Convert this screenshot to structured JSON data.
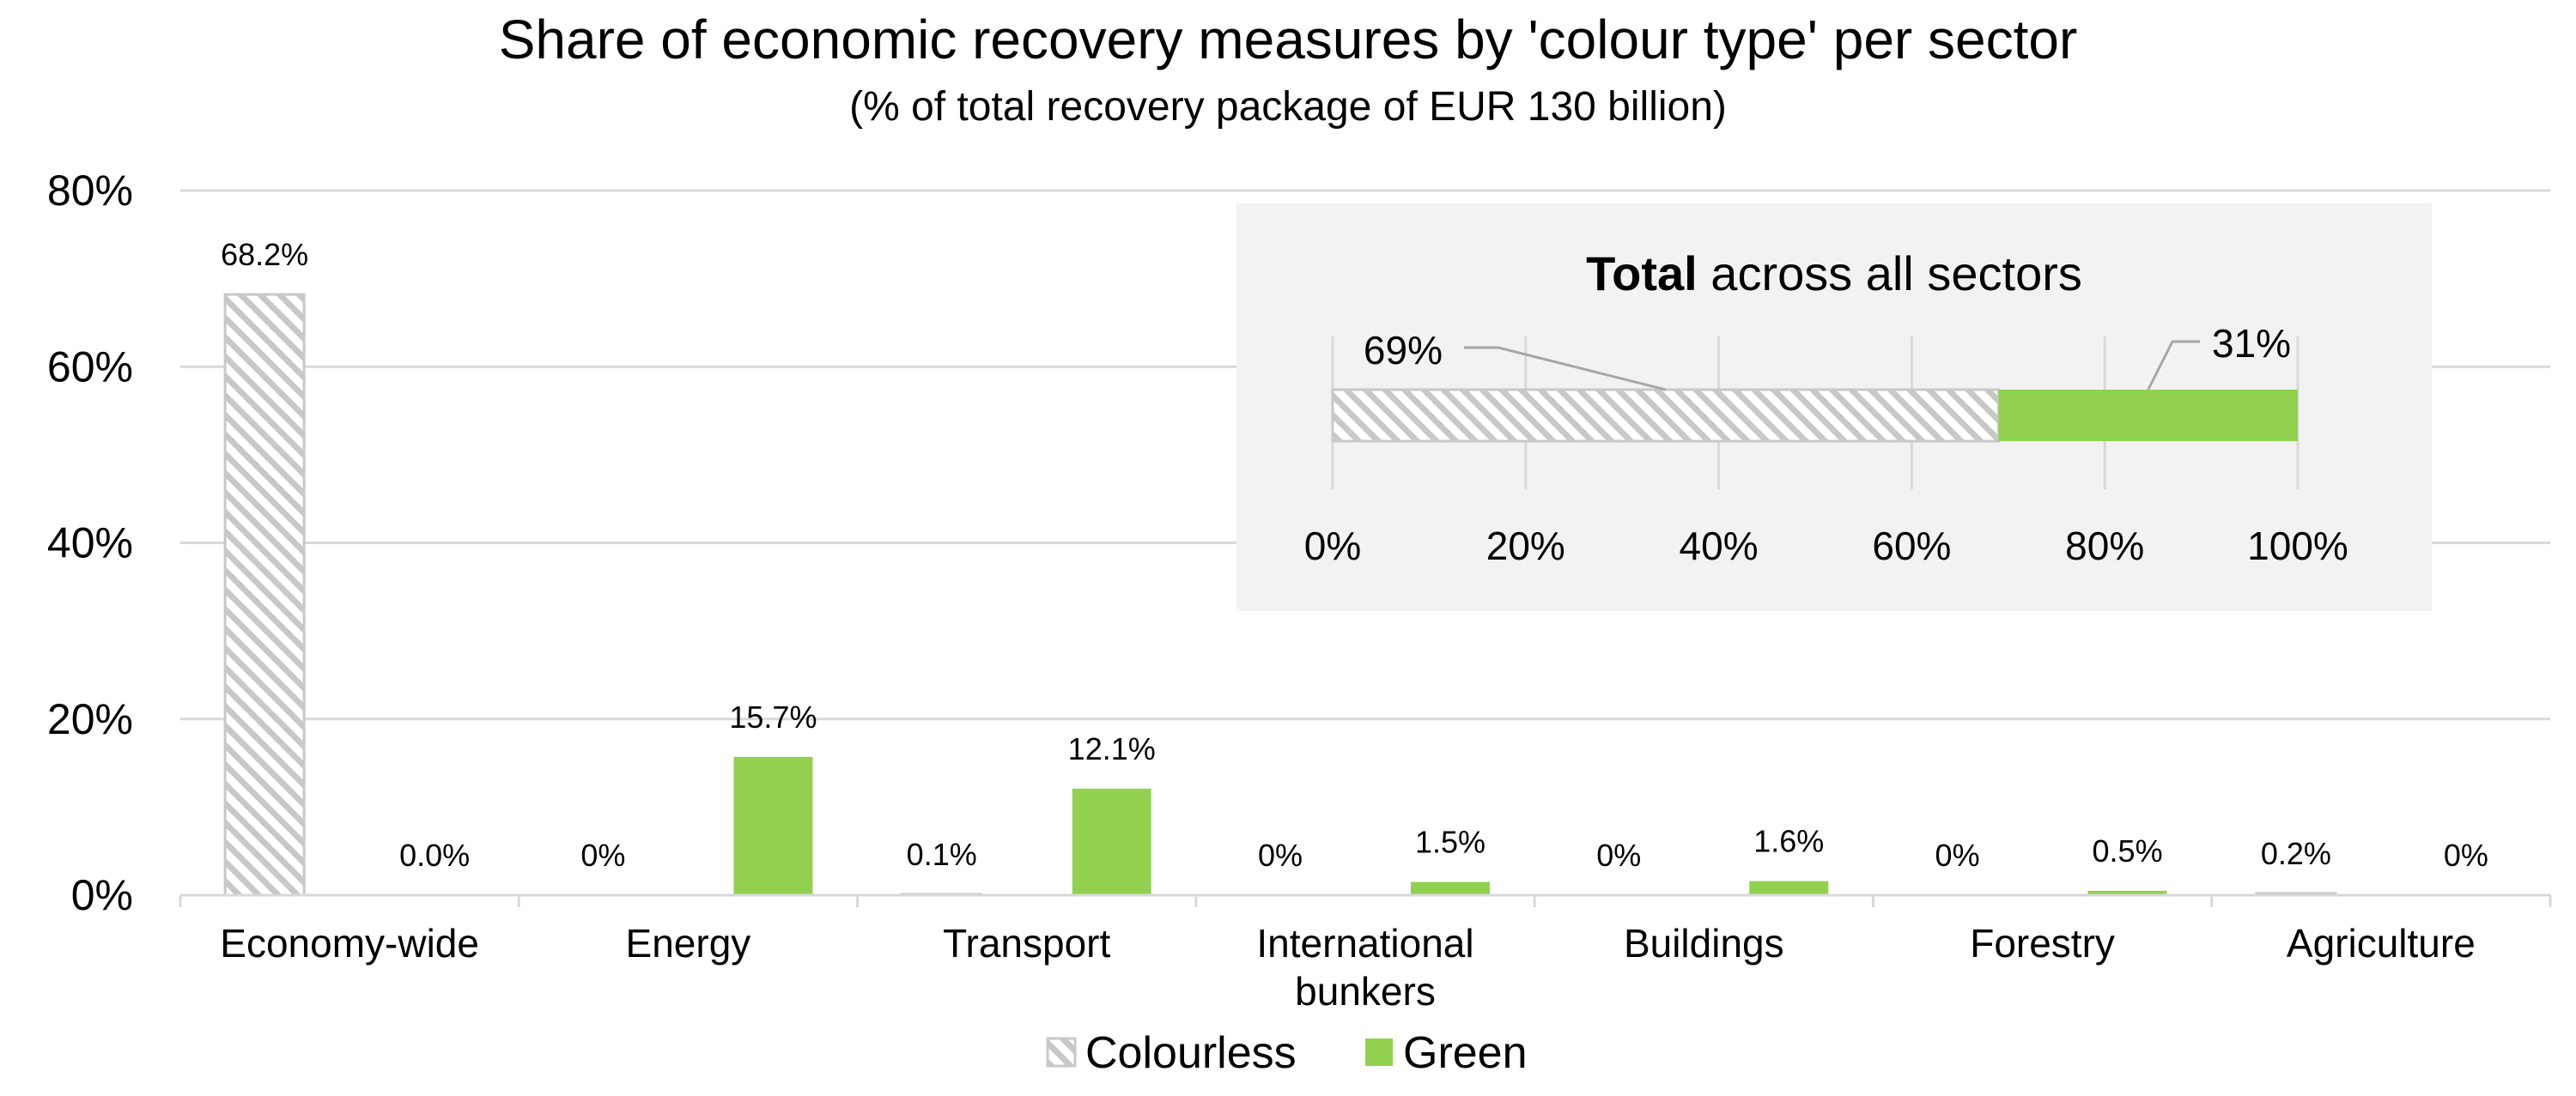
{
  "chart_data": {
    "type": "bar",
    "title": "Share of economic recovery measures by 'colour type' per sector",
    "subtitle": "(% of total recovery package of EUR 130 billion)",
    "categories": [
      "Economy-wide",
      "Energy",
      "Transport",
      "International bunkers",
      "Buildings",
      "Forestry",
      "Agriculture"
    ],
    "category_lines": [
      [
        "Economy-wide"
      ],
      [
        "Energy"
      ],
      [
        "Transport"
      ],
      [
        "International",
        "bunkers"
      ],
      [
        "Buildings"
      ],
      [
        "Forestry"
      ],
      [
        "Agriculture"
      ]
    ],
    "ylim": [
      0,
      80
    ],
    "yticks": [
      0,
      20,
      40,
      60,
      80
    ],
    "ytick_labels": [
      "0%",
      "20%",
      "40%",
      "60%",
      "80%"
    ],
    "grid": true,
    "legend_position": "bottom",
    "series": [
      {
        "name": "Colourless",
        "pattern": "hatched",
        "color": "#c8c8c8",
        "values": [
          68.2,
          0,
          0.1,
          0,
          0,
          0,
          0.2
        ],
        "labels": [
          "68.2%",
          "0%",
          "0.1%",
          "0%",
          "0%",
          "0%",
          "0.2%"
        ]
      },
      {
        "name": "Green",
        "pattern": "solid",
        "color": "#92d050",
        "values": [
          0.0,
          15.7,
          12.1,
          1.5,
          1.6,
          0.5,
          0
        ],
        "labels": [
          "0.0%",
          "15.7%",
          "12.1%",
          "1.5%",
          "1.6%",
          "0.5%",
          "0%"
        ]
      }
    ],
    "inset": {
      "type": "stacked-bar-horizontal",
      "title_bold": "Total",
      "title_rest": " across all sectors",
      "xlim": [
        0,
        100
      ],
      "xticks": [
        0,
        20,
        40,
        60,
        80,
        100
      ],
      "xtick_labels": [
        "0%",
        "20%",
        "40%",
        "60%",
        "80%",
        "100%"
      ],
      "segments": [
        {
          "name": "Colourless",
          "value": 69,
          "label": "69%"
        },
        {
          "name": "Green",
          "value": 31,
          "label": "31%"
        }
      ],
      "background": "#f2f2f2"
    }
  }
}
